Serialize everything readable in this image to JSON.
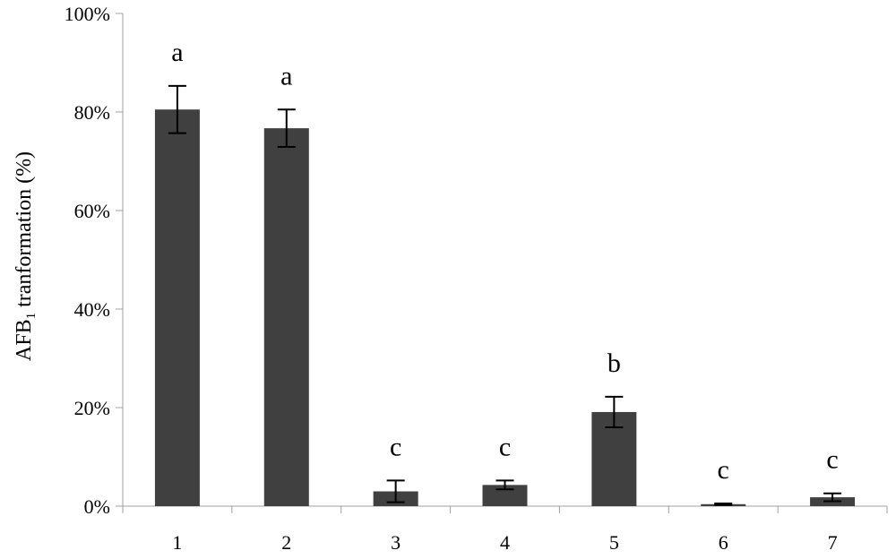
{
  "chart_data": {
    "type": "bar",
    "title": "",
    "xlabel": "",
    "ylabel": "AFB",
    "ylabel_subscript": "1",
    "ylabel_rest": " tranformation (%)",
    "categories": [
      "1",
      "2",
      "3",
      "4",
      "5",
      "6",
      "7"
    ],
    "values": [
      80.5,
      76.7,
      3.0,
      4.3,
      19.1,
      0.4,
      1.8
    ],
    "errors": [
      4.8,
      3.8,
      2.2,
      0.9,
      3.1,
      0.15,
      0.8
    ],
    "significance": [
      "a",
      "a",
      "c",
      "c",
      "b",
      "c",
      "c"
    ],
    "ylim": [
      0,
      100
    ],
    "yticks": [
      0,
      20,
      40,
      60,
      80,
      100
    ],
    "ytick_labels": [
      "0%",
      "20%",
      "40%",
      "60%",
      "80%",
      "100%"
    ],
    "bar_color": "#404040",
    "grid": false,
    "legend": "none"
  }
}
